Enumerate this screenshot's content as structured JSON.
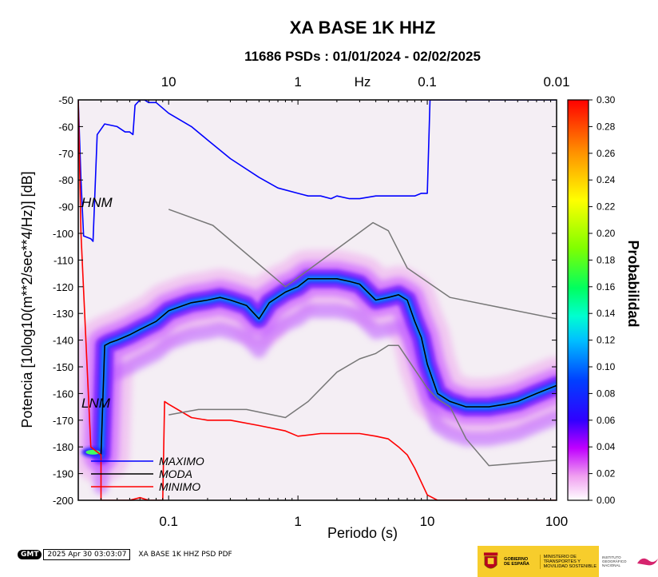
{
  "chart_data": {
    "type": "heatmap",
    "title": "XA BASE 1K HHZ",
    "subtitle": "11686 PSDs : 01/01/2024 - 02/02/2025",
    "xlabel": "Periodo (s)",
    "top_xlabel": "Hz",
    "ylabel": "Potencia [10log10(m**2/sec**4/Hz)] [dB]",
    "colorbar_label": "Probabilidad",
    "x_scale": "log",
    "xlim": [
      0.02,
      100
    ],
    "ylim": [
      -200,
      -50
    ],
    "x_ticks": [
      0.1,
      1,
      10,
      100
    ],
    "x_tick_labels": [
      "0.1",
      "1",
      "10",
      "100"
    ],
    "top_ticks": [
      0.1,
      1,
      10,
      100
    ],
    "top_tick_labels": [
      "10",
      "1",
      "0.1",
      "0.01"
    ],
    "y_ticks": [
      -200,
      -190,
      -180,
      -170,
      -160,
      -150,
      -140,
      -130,
      -120,
      -110,
      -100,
      -90,
      -80,
      -70,
      -60,
      -50
    ],
    "colorbar_ticks": [
      0.0,
      0.02,
      0.04,
      0.06,
      0.08,
      0.1,
      0.12,
      0.14,
      0.16,
      0.18,
      0.2,
      0.22,
      0.24,
      0.26,
      0.28,
      0.3
    ],
    "colorbar_tick_labels": [
      "0.00",
      "0.02",
      "0.04",
      "0.06",
      "0.08",
      "0.10",
      "0.12",
      "0.14",
      "0.16",
      "0.18",
      "0.20",
      "0.22",
      "0.24",
      "0.26",
      "0.28",
      "0.30"
    ],
    "colorbar_range": [
      0,
      0.3
    ],
    "reference_labels": [
      "HNM",
      "LNM"
    ],
    "legend": [
      {
        "name": "MAXIMO",
        "color": "#0000ff"
      },
      {
        "name": "MODA",
        "color": "#000000"
      },
      {
        "name": "MINIMO",
        "color": "#ff0000"
      }
    ],
    "legend_position": "bottom-left",
    "series": [
      {
        "name": "MAXIMO",
        "color": "#0000ff",
        "x": [
          0.02,
          0.021,
          0.022,
          0.025,
          0.026,
          0.028,
          0.032,
          0.04,
          0.046,
          0.05,
          0.053,
          0.055,
          0.06,
          0.065,
          0.07,
          0.08,
          0.1,
          0.15,
          0.2,
          0.3,
          0.5,
          0.7,
          1,
          1.2,
          1.5,
          1.8,
          2,
          2.5,
          3,
          4,
          5,
          6,
          7,
          8,
          9,
          10,
          10.5,
          11,
          100
        ],
        "y": [
          -50,
          -80,
          -101,
          -102,
          -103,
          -63,
          -59,
          -60,
          -62,
          -62,
          -63,
          -52,
          -50,
          -50,
          -51,
          -51,
          -55,
          -60,
          -65,
          -72,
          -79,
          -83,
          -85,
          -86,
          -86,
          -87,
          -86,
          -87,
          -87,
          -86,
          -86,
          -86,
          -86,
          -86,
          -85,
          -85,
          -50,
          -50,
          -50
        ]
      },
      {
        "name": "MODA",
        "color": "#000000",
        "x": [
          0.03,
          0.032,
          0.035,
          0.04,
          0.05,
          0.06,
          0.08,
          0.1,
          0.13,
          0.15,
          0.2,
          0.25,
          0.3,
          0.4,
          0.5,
          0.6,
          0.8,
          1,
          1.2,
          1.5,
          2,
          2.5,
          3,
          4,
          5,
          6,
          7,
          8,
          9,
          10,
          12,
          15,
          20,
          25,
          30,
          40,
          50,
          70,
          100
        ],
        "y": [
          -183,
          -142,
          -141,
          -140,
          -138,
          -136,
          -133,
          -129,
          -127,
          -126,
          -125,
          -124,
          -125,
          -127,
          -132,
          -126,
          -122,
          -120,
          -117,
          -117,
          -117,
          -118,
          -119,
          -125,
          -124,
          -123,
          -125,
          -133,
          -139,
          -149,
          -160,
          -163,
          -165,
          -165,
          -165,
          -164,
          -163,
          -160,
          -157
        ]
      },
      {
        "name": "MINIMO",
        "color": "#ff0000",
        "x": [
          0.02,
          0.021,
          0.025,
          0.03,
          0.03,
          0.05,
          0.06,
          0.07,
          0.08,
          0.09,
          0.093,
          0.1,
          0.15,
          0.2,
          0.3,
          0.5,
          0.8,
          1,
          1.5,
          2,
          3,
          4,
          5,
          6,
          7,
          8,
          10,
          12,
          15,
          20,
          50,
          100
        ],
        "y": [
          -50,
          -100,
          -180,
          -183,
          -200,
          -200,
          -199,
          -200,
          -200,
          -200,
          -163,
          -164,
          -169,
          -170,
          -170,
          -172,
          -174,
          -176,
          -175,
          -175,
          -175,
          -176,
          -177,
          -180,
          -183,
          -188,
          -198,
          -200,
          -200,
          -200,
          -200,
          -200
        ]
      },
      {
        "name": "HNM",
        "color": "#777777",
        "x": [
          0.1,
          0.22,
          0.8,
          3.8,
          5,
          7,
          15,
          100
        ],
        "y": [
          -91,
          -97,
          -120,
          -96,
          -99,
          -113,
          -124,
          -132
        ]
      },
      {
        "name": "LNM",
        "color": "#777777",
        "x": [
          0.1,
          0.17,
          0.4,
          0.8,
          1.2,
          2,
          3,
          4,
          5,
          6,
          10,
          12,
          15,
          20,
          30,
          100
        ],
        "y": [
          -168,
          -166,
          -166,
          -169,
          -163,
          -152,
          -147,
          -145,
          -142,
          -142,
          -158,
          -162,
          -165,
          -177,
          -187,
          -185
        ]
      }
    ]
  },
  "footer": {
    "logo": "GMT",
    "timestamp": "2025 Apr 30 03:03:07",
    "label": "XA BASE 1K HHZ PSD PDF"
  },
  "logos": {
    "gov_text": "GOBIERNO DE ESPAÑA",
    "ministry_text": "MINISTERIO DE TRANSPORTES Y MOVILIDAD SOSTENIBLE",
    "ign_text": "INSTITUTO GEOGRÁFICO NACIONAL"
  },
  "colors": {
    "background": "#ffffff",
    "maximo": "#0000ff",
    "moda": "#000000",
    "minimo": "#ff0000",
    "noise_models": "#777777",
    "government_yellow": "#f7cd2c"
  }
}
